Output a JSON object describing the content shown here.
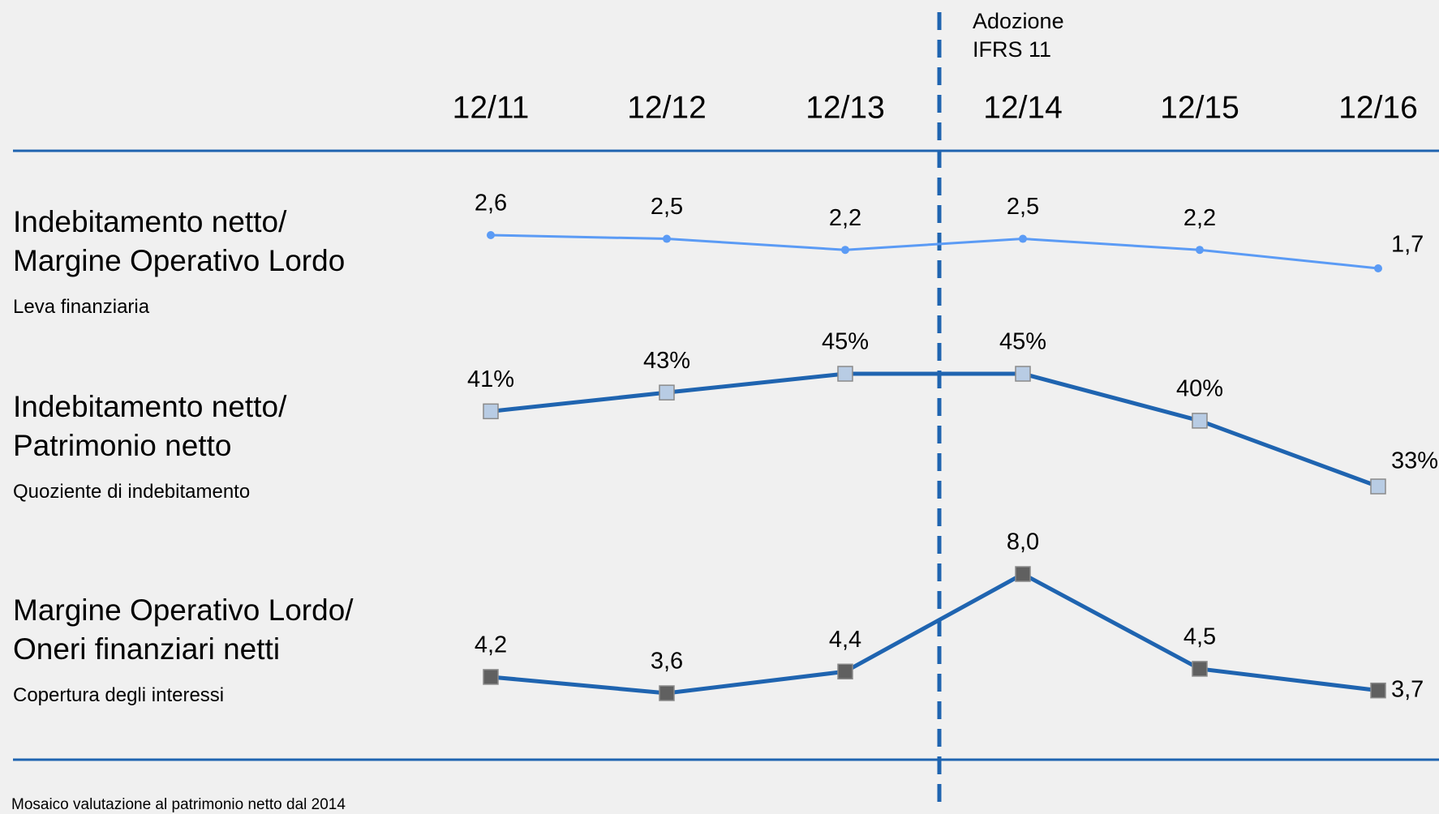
{
  "chart_data": {
    "type": "line",
    "categories": [
      "12/11",
      "12/12",
      "12/13",
      "12/14",
      "12/15",
      "12/16"
    ],
    "annotation": "Adozione\nIFRS 11",
    "footnote": "Mosaico valutazione al patrimonio netto dal 2014",
    "series": [
      {
        "name": "Indebitamento netto/\nMargine Operativo Lordo",
        "subtitle": "Leva finanziaria",
        "color": "#5b9bf5",
        "marker": "circle",
        "marker_color": "#5b9bf5",
        "values": [
          2.6,
          2.5,
          2.2,
          2.5,
          2.2,
          1.7
        ],
        "value_labels": [
          "2,6",
          "2,5",
          "2,2",
          "2,5",
          "2,2",
          "1,7"
        ]
      },
      {
        "name": "Indebitamento netto/\nPatrimonio netto",
        "subtitle": "Quoziente di indebitamento",
        "color": "#1f64b0",
        "marker": "square",
        "marker_color": "#b8cce4",
        "values": [
          41,
          43,
          45,
          45,
          40,
          33
        ],
        "value_labels": [
          "41%",
          "43%",
          "45%",
          "45%",
          "40%",
          "33%"
        ]
      },
      {
        "name": "Margine Operativo Lordo/\nOneri finanziari netti",
        "subtitle": "Copertura degli interessi",
        "color": "#1f64b0",
        "marker": "square",
        "marker_color": "#606060",
        "values": [
          4.2,
          3.6,
          4.4,
          8.0,
          4.5,
          3.7
        ],
        "value_labels": [
          "4,2",
          "3,6",
          "4,4",
          "8,0",
          "4,5",
          "3,7"
        ]
      }
    ]
  }
}
